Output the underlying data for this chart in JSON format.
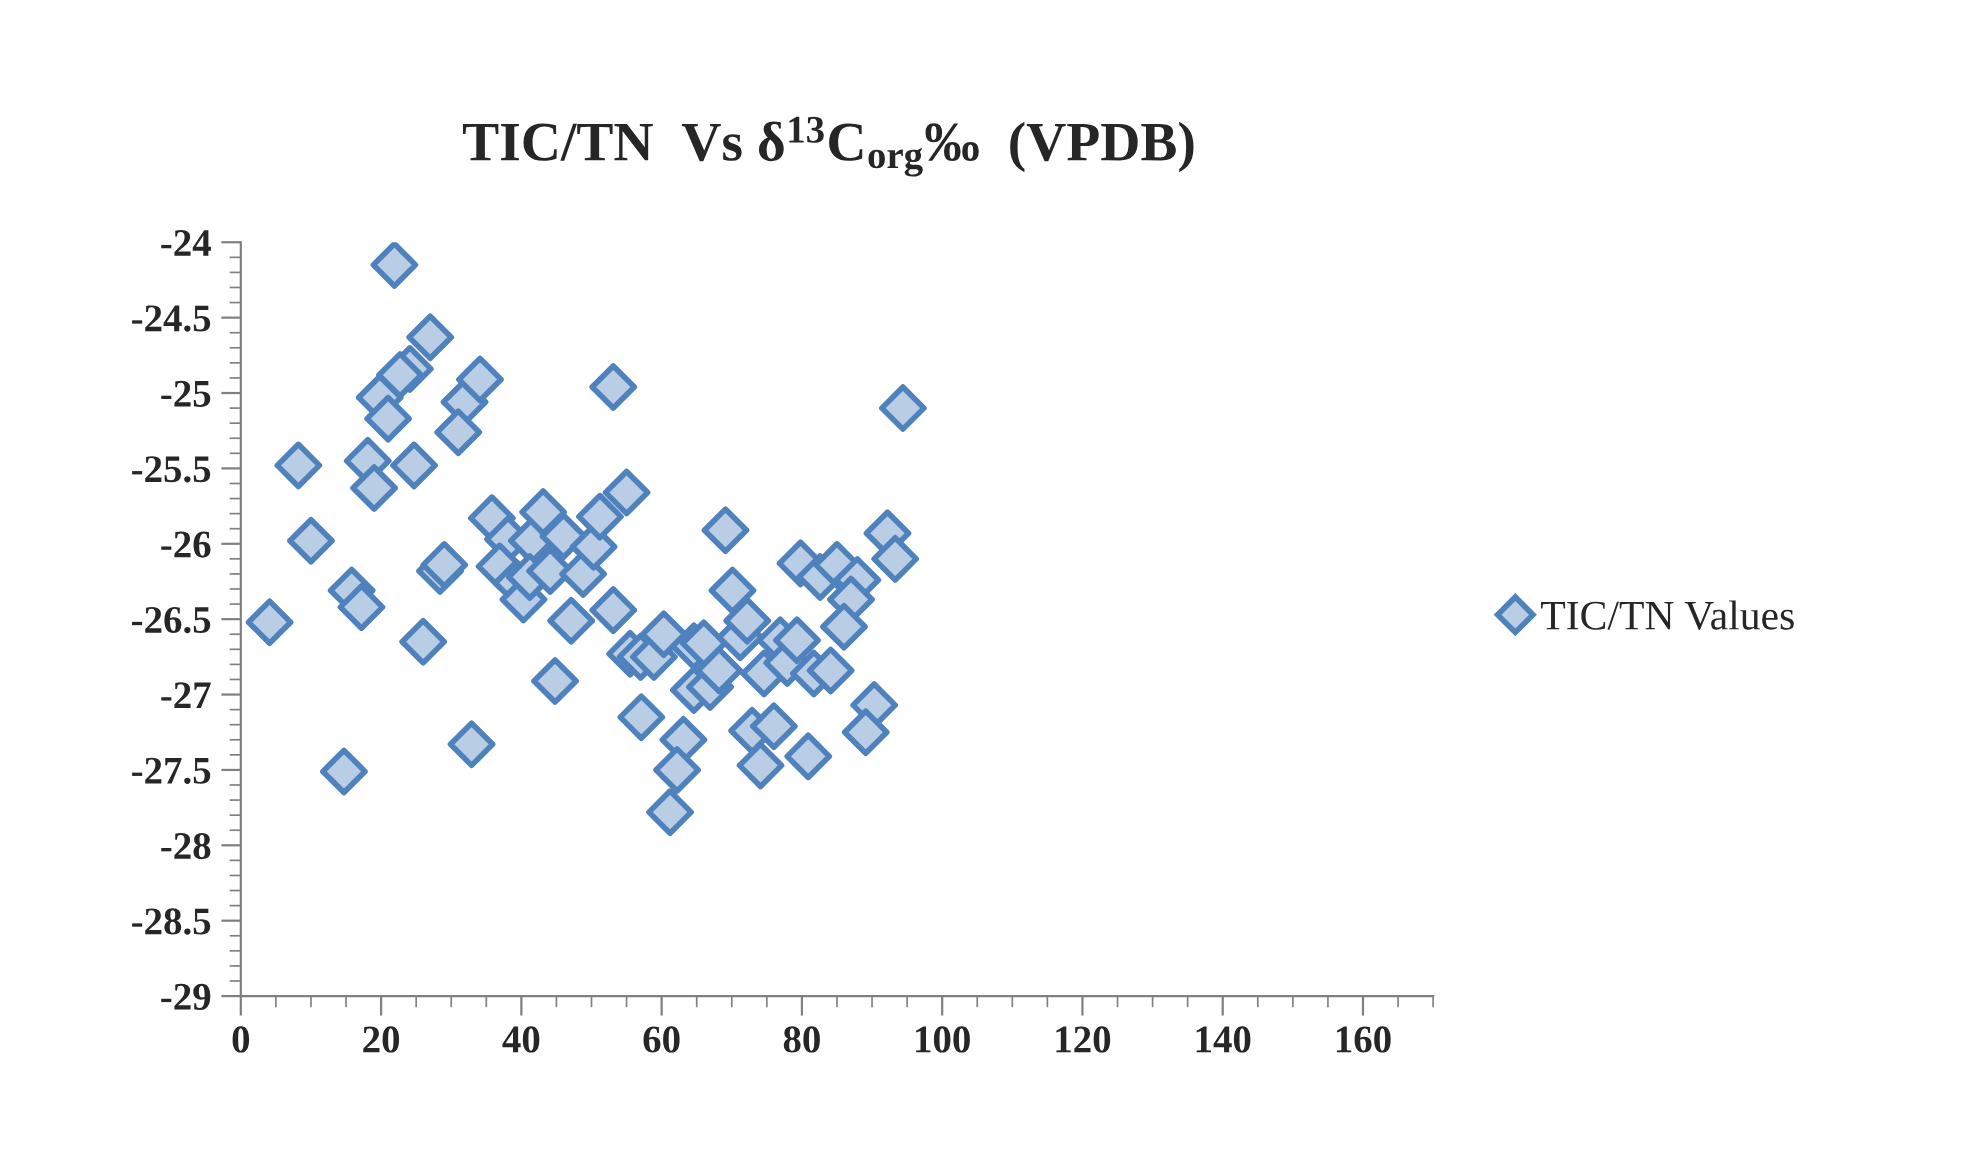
{
  "chart_data": {
    "type": "scatter",
    "title": "TIC/TN  Vs δ$^{13}$C$_{org}$‰  (VPDB)",
    "series": [
      {
        "name": "TIC/TN Values",
        "color": "#4f81bd",
        "x": [
          21.9,
          27.0,
          24.1,
          22.7,
          19.8,
          21.0,
          31.9,
          34.1,
          31.0,
          8.2,
          18.1,
          19.0,
          24.7,
          10.0,
          15.8,
          17.2,
          4.1,
          26.0,
          28.4,
          29.0,
          14.7,
          32.9,
          44.8,
          47.1,
          35.8,
          38.1,
          36.9,
          39.3,
          40.3,
          41.5,
          43.1,
          46.0,
          41.2,
          44.1,
          48.8,
          50.3,
          51.2,
          53.1,
          53.1,
          55.0,
          55.5,
          57.0,
          58.9,
          60.3,
          57.1,
          63.1,
          62.2,
          61.2,
          64.6,
          66.0,
          64.6,
          66.9,
          68.2,
          69.1,
          70.1,
          71.2,
          72.2,
          72.9,
          76.0,
          74.1,
          74.6,
          76.9,
          77.9,
          79.3,
          81.7,
          84.1,
          80.9,
          79.8,
          82.6,
          85.0,
          87.9,
          87.0,
          86.0,
          90.3,
          89.1,
          92.2,
          93.3,
          94.4
        ],
        "values": [
          -24.15,
          -24.63,
          -24.84,
          -24.88,
          -25.03,
          -25.17,
          -25.06,
          -24.91,
          -25.26,
          -25.48,
          -25.45,
          -25.63,
          -25.48,
          -25.98,
          -26.31,
          -26.42,
          -26.52,
          -26.65,
          -26.18,
          -26.14,
          -27.51,
          -27.33,
          -26.91,
          -26.51,
          -25.83,
          -25.97,
          -26.15,
          -26.26,
          -26.37,
          -25.98,
          -25.79,
          -25.95,
          -26.22,
          -26.18,
          -26.2,
          -26.02,
          -25.82,
          -24.96,
          -26.44,
          -25.66,
          -26.73,
          -26.75,
          -26.75,
          -26.6,
          -27.15,
          -27.3,
          -27.5,
          -27.78,
          -26.68,
          -26.66,
          -26.97,
          -26.95,
          -26.84,
          -25.91,
          -26.31,
          -26.62,
          -26.51,
          -27.24,
          -27.21,
          -27.47,
          -26.86,
          -26.64,
          -26.79,
          -26.64,
          -26.86,
          -26.84,
          -27.41,
          -26.13,
          -26.22,
          -26.14,
          -26.24,
          -26.37,
          -26.55,
          -27.07,
          -27.25,
          -25.93,
          -26.1,
          -25.1
        ]
      }
    ],
    "xlim": [
      0,
      170
    ],
    "xticks": [
      0,
      20,
      40,
      60,
      80,
      100,
      120,
      140,
      160
    ],
    "ylim": [
      -29,
      -24
    ],
    "yticks": [
      -29,
      -28.5,
      -28,
      -27.5,
      -27,
      -26.5,
      -26,
      -25.5,
      -25,
      -24.5,
      -24
    ],
    "marker": "diamond",
    "grid": false,
    "legend": "right"
  }
}
